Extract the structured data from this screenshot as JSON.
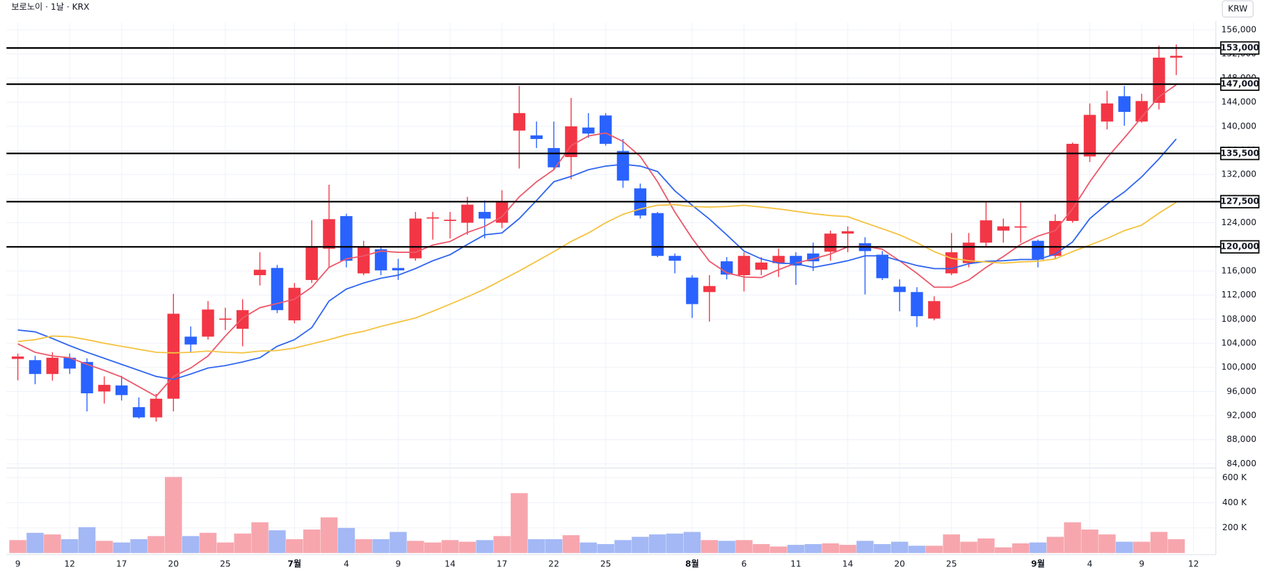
{
  "chart_data": {
    "type": "candlestick",
    "title": "보로노이 · 1날 · KRX",
    "currency": "KRW",
    "categories": [
      "9",
      null,
      null,
      "12",
      null,
      null,
      "17",
      null,
      null,
      "20",
      null,
      null,
      "25",
      null,
      null,
      null,
      "7월",
      null,
      null,
      "4",
      null,
      null,
      "9",
      null,
      null,
      "14",
      null,
      null,
      "17",
      null,
      null,
      "22",
      null,
      null,
      "25",
      null,
      null,
      null,
      null,
      "8월",
      null,
      null,
      "6",
      null,
      null,
      "11",
      null,
      null,
      "14",
      null,
      null,
      "20",
      null,
      null,
      "25",
      null,
      null,
      null,
      null,
      "9월",
      null,
      null,
      "4",
      null,
      null,
      "9",
      null,
      null,
      "12"
    ],
    "open": [
      101400,
      101200,
      98900,
      101600,
      100900,
      96000,
      97000,
      93400,
      91700,
      94800,
      105100,
      105100,
      108000,
      106400,
      115300,
      116500,
      107800,
      114500,
      119700,
      125100,
      115600,
      119600,
      116500,
      118100,
      124800,
      124400,
      124000,
      125800,
      124000,
      139300,
      138500,
      136400,
      134900,
      139800,
      141800,
      135900,
      129700,
      125600,
      118500,
      114900,
      112500,
      117600,
      115300,
      116200,
      117300,
      118500,
      118900,
      119200,
      122200,
      120600,
      118700,
      113400,
      112500,
      108100,
      115600,
      117300,
      120700,
      122700,
      123300,
      121000,
      118500,
      124300,
      135000,
      140800,
      145000,
      140800,
      143900,
      151400,
      null
    ],
    "high": [
      102300,
      101900,
      102500,
      102300,
      101500,
      98500,
      98600,
      95000,
      95600,
      112200,
      106800,
      111000,
      109900,
      111300,
      119100,
      117000,
      114000,
      124400,
      130300,
      125500,
      121000,
      120000,
      118000,
      125800,
      125800,
      125800,
      128300,
      127700,
      129400,
      146700,
      140800,
      140800,
      144700,
      142200,
      142200,
      137900,
      130500,
      125800,
      118900,
      115300,
      115300,
      118300,
      119100,
      118300,
      119700,
      119100,
      120700,
      122700,
      123400,
      121600,
      119300,
      114600,
      113300,
      111800,
      122300,
      122300,
      127400,
      124700,
      127400,
      121200,
      125400,
      137300,
      143800,
      145900,
      146700,
      145400,
      153400,
      153600,
      null
    ],
    "low": [
      97850,
      97200,
      97800,
      98900,
      92700,
      94000,
      94500,
      91500,
      91000,
      92700,
      102400,
      104600,
      106200,
      103500,
      113600,
      109000,
      107300,
      114000,
      116600,
      116600,
      115300,
      115300,
      114500,
      117700,
      121200,
      121400,
      122000,
      121400,
      123100,
      133000,
      136400,
      132800,
      131200,
      138100,
      136800,
      129800,
      124700,
      118300,
      115600,
      108200,
      107600,
      114600,
      112600,
      115300,
      115000,
      113700,
      116000,
      117700,
      119100,
      112100,
      114500,
      109300,
      106700,
      107800,
      115300,
      116600,
      119900,
      120700,
      120700,
      116600,
      118000,
      124000,
      134100,
      139500,
      140100,
      140600,
      142800,
      148500,
      null
    ],
    "close": [
      101800,
      98900,
      101600,
      99800,
      95700,
      97100,
      95400,
      91700,
      94800,
      108900,
      103800,
      109600,
      108100,
      109500,
      116200,
      109500,
      113200,
      119900,
      124600,
      117700,
      119900,
      116100,
      116100,
      124700,
      124900,
      124500,
      127000,
      124700,
      127400,
      142200,
      137900,
      133200,
      140000,
      138800,
      137100,
      131000,
      125200,
      118500,
      117700,
      110500,
      113500,
      115400,
      118500,
      117400,
      118500,
      116900,
      117600,
      122200,
      122600,
      119300,
      114800,
      112500,
      108500,
      111000,
      119100,
      120700,
      124400,
      123400,
      123400,
      117900,
      124300,
      137100,
      141900,
      143800,
      142400,
      144200,
      151400,
      151700,
      null
    ],
    "volume": [
      103000,
      161000,
      148000,
      110000,
      206000,
      97000,
      84000,
      110000,
      135000,
      606000,
      135000,
      161000,
      84000,
      155000,
      245000,
      181000,
      110000,
      187000,
      284000,
      200000,
      110000,
      110000,
      168000,
      97000,
      84000,
      103000,
      90000,
      103000,
      135000,
      477000,
      110000,
      110000,
      142000,
      84000,
      71000,
      103000,
      129000,
      148000,
      155000,
      168000,
      103000,
      97000,
      103000,
      71000,
      52000,
      65000,
      71000,
      77000,
      65000,
      97000,
      71000,
      90000,
      58000,
      58000,
      148000,
      90000,
      116000,
      45000,
      77000,
      84000,
      129000,
      245000,
      187000,
      148000,
      90000,
      90000,
      168000,
      110000,
      null
    ],
    "up_color": "#f23645",
    "down_color": "#2962ff",
    "up_volume_color": "#f7a6ae",
    "down_volume_color": "#a3b8f5",
    "series": [
      {
        "color": "#ec5a6b",
        "values": [
          103900,
          102500,
          101900,
          101600,
          100500,
          99500,
          98400,
          96800,
          95200,
          98500,
          99900,
          101900,
          105200,
          108200,
          109900,
          110600,
          111300,
          113300,
          116600,
          118000,
          118500,
          119300,
          119100,
          119100,
          120300,
          120900,
          122400,
          123400,
          125000,
          128300,
          130800,
          132800,
          136800,
          138400,
          138900,
          137500,
          135000,
          130800,
          125800,
          121400,
          117600,
          115700,
          115000,
          114900,
          116200,
          117300,
          118000,
          118800,
          120000,
          120100,
          119600,
          117700,
          115600,
          113300,
          113300,
          114500,
          116600,
          118400,
          120400,
          121800,
          122700,
          126300,
          130800,
          134800,
          138100,
          141500,
          144900,
          146900,
          null
        ]
      },
      {
        "color": "#3166f0",
        "values": [
          106200,
          105900,
          104800,
          103600,
          102500,
          101500,
          100500,
          99500,
          98500,
          98000,
          98900,
          99900,
          100300,
          100900,
          101600,
          103500,
          104600,
          106600,
          111000,
          113000,
          114000,
          114800,
          115300,
          116400,
          117700,
          118700,
          120400,
          122000,
          122300,
          124700,
          127700,
          130800,
          131700,
          132800,
          133400,
          133700,
          133400,
          132500,
          129300,
          126900,
          124600,
          122000,
          119300,
          118000,
          117300,
          117200,
          116600,
          117100,
          117700,
          118500,
          118500,
          117700,
          116900,
          116400,
          116400,
          117200,
          117600,
          117700,
          117900,
          117900,
          118800,
          120800,
          124700,
          127100,
          129100,
          131600,
          134600,
          137900,
          null
        ]
      },
      {
        "color": "#f5c342",
        "values": [
          104300,
          104600,
          105200,
          105100,
          104600,
          104000,
          103500,
          103000,
          102500,
          102400,
          102500,
          102700,
          102500,
          102400,
          102700,
          102800,
          103200,
          103900,
          104600,
          105400,
          106000,
          106800,
          107500,
          108200,
          109300,
          110500,
          111700,
          113000,
          114500,
          116000,
          117600,
          119200,
          120900,
          122300,
          124000,
          125400,
          126300,
          126900,
          127000,
          126700,
          126600,
          126700,
          126900,
          126600,
          126300,
          125900,
          125500,
          125200,
          125000,
          124000,
          123000,
          122000,
          120700,
          119200,
          118100,
          117700,
          117500,
          117300,
          117500,
          117600,
          118000,
          119200,
          120300,
          121400,
          122700,
          123600,
          125600,
          127400,
          null
        ]
      }
    ],
    "hlines": [
      {
        "value": 153000,
        "label": "153,000"
      },
      {
        "value": 147000,
        "label": "147,000"
      },
      {
        "value": 135500,
        "label": "135,500"
      },
      {
        "value": 127500,
        "label": "127,500"
      },
      {
        "value": 120000,
        "label": "120,000"
      }
    ],
    "ylim": [
      83300,
      157200
    ],
    "yticks": [
      {
        "value": 84000,
        "label": "84,000"
      },
      {
        "value": 88000,
        "label": "88,000"
      },
      {
        "value": 92000,
        "label": "92,000"
      },
      {
        "value": 96000,
        "label": "96,000"
      },
      {
        "value": 100000,
        "label": "100,000"
      },
      {
        "value": 104000,
        "label": "104,000"
      },
      {
        "value": 108000,
        "label": "108,000"
      },
      {
        "value": 112000,
        "label": "112,000"
      },
      {
        "value": 116000,
        "label": "116,000"
      },
      {
        "value": 120000,
        "label": "120,000"
      },
      {
        "value": 124000,
        "label": "124,000"
      },
      {
        "value": 128000,
        "label": "128,000"
      },
      {
        "value": 132000,
        "label": "132,000"
      },
      {
        "value": 136000,
        "label": "136,000"
      },
      {
        "value": 140000,
        "label": "140,000"
      },
      {
        "value": 144000,
        "label": "144,000"
      },
      {
        "value": 148000,
        "label": "148,000"
      },
      {
        "value": 152000,
        "label": "152,000"
      },
      {
        "value": 156000,
        "label": "156,000"
      }
    ],
    "volume_ylim": [
      0,
      645000
    ],
    "volume_yticks": [
      {
        "value": 200000,
        "label": "200 K"
      },
      {
        "value": 400000,
        "label": "400 K"
      },
      {
        "value": 600000,
        "label": "600 K"
      }
    ],
    "grid": true
  }
}
